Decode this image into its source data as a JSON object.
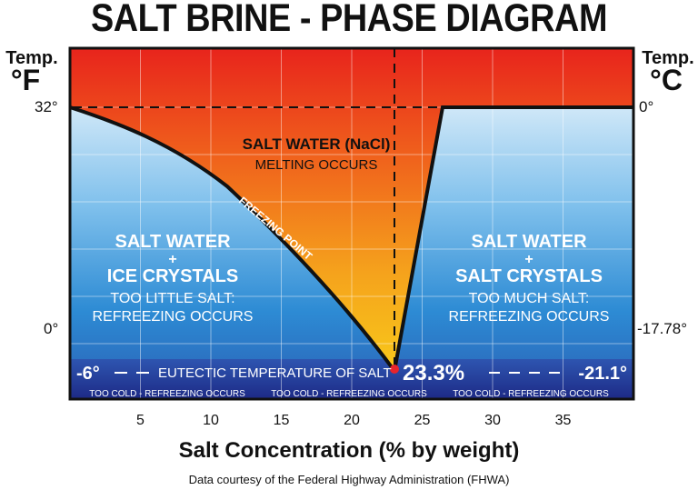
{
  "title": "SALT BRINE - PHASE DIAGRAM",
  "left_axis": {
    "label": "Temp.",
    "unit": "°F",
    "ticks": [
      "32°",
      "0°"
    ]
  },
  "right_axis": {
    "label": "Temp.",
    "unit": "°C",
    "ticks": [
      "0°",
      "-17.78°"
    ]
  },
  "regions": {
    "liquid": {
      "title": "SALT WATER (NaCl)",
      "subtitle": "MELTING OCCURS"
    },
    "ice": {
      "line1": "SALT WATER",
      "plus": "+",
      "line2": "ICE CRYSTALS",
      "note1": "TOO LITTLE SALT:",
      "note2": "REFREEZING OCCURS"
    },
    "salt": {
      "line1": "SALT WATER",
      "plus": "+",
      "line2": "SALT CRYSTALS",
      "note1": "TOO MUCH SALT:",
      "note2": "REFREEZING OCCURS"
    }
  },
  "curve_label": "FREEZING POINT",
  "eutectic": {
    "temp_f": "-6°",
    "temp_c": "-21.1°",
    "label": "EUTECTIC TEMPERATURE OF SALT",
    "concentration": "23.3%",
    "bottom_note": "TOO COLD - REFREEZING OCCURS"
  },
  "x_axis": {
    "label": "Salt Concentration (% by weight)",
    "ticks": [
      "5",
      "10",
      "15",
      "20",
      "25",
      "30",
      "35"
    ]
  },
  "source": "Data courtesy of the Federal Highway Administration (FHWA)",
  "colors": {
    "hot_top": "#e8241c",
    "hot_bottom": "#f6c21a",
    "cold_top": "#ffffff",
    "cold_mid": "#2e8fd6",
    "cold_bottom": "#1f2f8c",
    "eutectic_dot": "#e8242c"
  }
}
